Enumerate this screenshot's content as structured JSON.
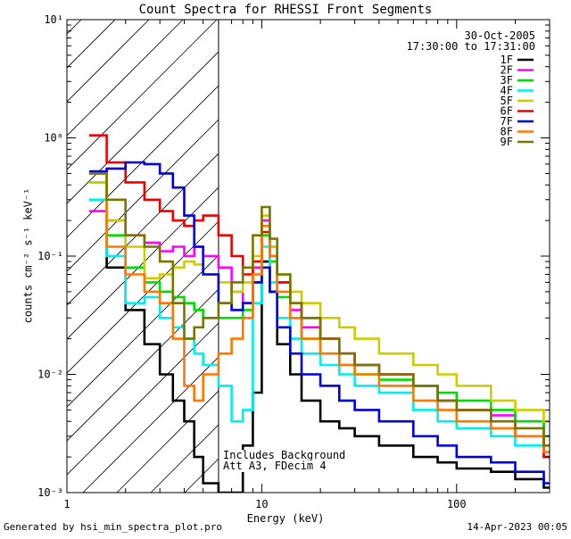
{
  "chart_data": {
    "type": "line",
    "title": "Count Spectra for RHESSI Front Segments",
    "xlabel": "Energy (keV)",
    "ylabel": "counts cm⁻² s⁻¹ keV⁻¹",
    "xscale": "log",
    "yscale": "log",
    "xlim": [
      1,
      300
    ],
    "ylim": [
      0.001,
      10
    ],
    "x_tick_labels": [
      "1",
      "10",
      "100"
    ],
    "y_tick_labels": [
      "10⁻³",
      "10⁻²",
      "10⁻¹",
      "10⁰",
      "10¹"
    ],
    "date": "30-Oct-2005",
    "time_range": "17:30:00 to 17:31:00",
    "shaded_region_keV": [
      1,
      6
    ],
    "annotations": [
      "Includes Background",
      "Att A3, FDecim 4"
    ],
    "footer_left": "Generated by hsi_min_spectra_plot.pro",
    "footer_right": "14-Apr-2023 00:05",
    "legend_position": "top-right",
    "series": [
      {
        "name": "1F",
        "color": "#000000",
        "points": [
          [
            1.3,
            0.3
          ],
          [
            1.6,
            0.08
          ],
          [
            2.0,
            0.035
          ],
          [
            2.5,
            0.018
          ],
          [
            3.0,
            0.01
          ],
          [
            3.5,
            0.006
          ],
          [
            4.0,
            0.004
          ],
          [
            4.5,
            0.002
          ],
          [
            5.0,
            0.0012
          ],
          [
            6.0,
            0.001
          ],
          [
            8.0,
            0.0025
          ],
          [
            9.0,
            0.007
          ],
          [
            10.0,
            0.09
          ],
          [
            11,
            0.05
          ],
          [
            12,
            0.018
          ],
          [
            14,
            0.01
          ],
          [
            16,
            0.006
          ],
          [
            20,
            0.004
          ],
          [
            25,
            0.0035
          ],
          [
            30,
            0.003
          ],
          [
            40,
            0.0025
          ],
          [
            60,
            0.002
          ],
          [
            80,
            0.0018
          ],
          [
            100,
            0.0016
          ],
          [
            150,
            0.0015
          ],
          [
            200,
            0.0013
          ],
          [
            280,
            0.0011
          ]
        ]
      },
      {
        "name": "2F",
        "color": "#ff00ff",
        "points": [
          [
            1.3,
            0.24
          ],
          [
            1.6,
            0.2
          ],
          [
            2.0,
            0.15
          ],
          [
            2.5,
            0.13
          ],
          [
            3.0,
            0.11
          ],
          [
            3.5,
            0.12
          ],
          [
            4.0,
            0.1
          ],
          [
            4.5,
            0.12
          ],
          [
            5.0,
            0.1
          ],
          [
            6.0,
            0.08
          ],
          [
            7.0,
            0.05
          ],
          [
            8.0,
            0.04
          ],
          [
            9.0,
            0.08
          ],
          [
            10.0,
            0.2
          ],
          [
            11,
            0.12
          ],
          [
            12,
            0.06
          ],
          [
            14,
            0.035
          ],
          [
            16,
            0.025
          ],
          [
            20,
            0.02
          ],
          [
            25,
            0.015
          ],
          [
            30,
            0.012
          ],
          [
            40,
            0.01
          ],
          [
            60,
            0.008
          ],
          [
            80,
            0.006
          ],
          [
            100,
            0.005
          ],
          [
            150,
            0.0045
          ],
          [
            200,
            0.004
          ],
          [
            280,
            0.002
          ]
        ]
      },
      {
        "name": "3F",
        "color": "#00dd00",
        "points": [
          [
            1.3,
            0.42
          ],
          [
            1.6,
            0.15
          ],
          [
            2.0,
            0.08
          ],
          [
            2.5,
            0.06
          ],
          [
            3.0,
            0.05
          ],
          [
            3.5,
            0.045
          ],
          [
            4.0,
            0.04
          ],
          [
            4.5,
            0.035
          ],
          [
            5.0,
            0.03
          ],
          [
            6.0,
            0.03
          ],
          [
            7.0,
            0.03
          ],
          [
            8.0,
            0.035
          ],
          [
            9.0,
            0.06
          ],
          [
            10.0,
            0.15
          ],
          [
            11,
            0.09
          ],
          [
            12,
            0.045
          ],
          [
            14,
            0.03
          ],
          [
            16,
            0.02
          ],
          [
            20,
            0.015
          ],
          [
            25,
            0.012
          ],
          [
            30,
            0.01
          ],
          [
            40,
            0.009
          ],
          [
            60,
            0.008
          ],
          [
            80,
            0.007
          ],
          [
            100,
            0.006
          ],
          [
            150,
            0.005
          ],
          [
            200,
            0.004
          ],
          [
            280,
            0.003
          ]
        ]
      },
      {
        "name": "4F",
        "color": "#00eeee",
        "points": [
          [
            1.3,
            0.3
          ],
          [
            1.6,
            0.1
          ],
          [
            2.0,
            0.04
          ],
          [
            2.5,
            0.045
          ],
          [
            3.0,
            0.03
          ],
          [
            3.5,
            0.025
          ],
          [
            4.0,
            0.02
          ],
          [
            4.5,
            0.015
          ],
          [
            5.0,
            0.012
          ],
          [
            6.0,
            0.008
          ],
          [
            7.0,
            0.004
          ],
          [
            8.0,
            0.005
          ],
          [
            9.0,
            0.04
          ],
          [
            10.0,
            0.12
          ],
          [
            11,
            0.06
          ],
          [
            12,
            0.03
          ],
          [
            14,
            0.02
          ],
          [
            16,
            0.015
          ],
          [
            20,
            0.012
          ],
          [
            25,
            0.01
          ],
          [
            30,
            0.008
          ],
          [
            40,
            0.007
          ],
          [
            60,
            0.005
          ],
          [
            80,
            0.004
          ],
          [
            100,
            0.0035
          ],
          [
            150,
            0.003
          ],
          [
            200,
            0.0025
          ],
          [
            280,
            0.002
          ]
        ]
      },
      {
        "name": "5F",
        "color": "#cccc00",
        "points": [
          [
            1.3,
            0.42
          ],
          [
            1.6,
            0.2
          ],
          [
            2.0,
            0.12
          ],
          [
            2.5,
            0.065
          ],
          [
            3.0,
            0.07
          ],
          [
            3.5,
            0.08
          ],
          [
            4.0,
            0.09
          ],
          [
            4.5,
            0.085
          ],
          [
            5.0,
            0.07
          ],
          [
            6.0,
            0.06
          ],
          [
            7.0,
            0.05
          ],
          [
            8.0,
            0.06
          ],
          [
            9.0,
            0.1
          ],
          [
            10.0,
            0.22
          ],
          [
            11,
            0.12
          ],
          [
            12,
            0.07
          ],
          [
            14,
            0.05
          ],
          [
            16,
            0.04
          ],
          [
            20,
            0.03
          ],
          [
            25,
            0.025
          ],
          [
            30,
            0.02
          ],
          [
            40,
            0.015
          ],
          [
            60,
            0.012
          ],
          [
            80,
            0.01
          ],
          [
            100,
            0.008
          ],
          [
            150,
            0.006
          ],
          [
            200,
            0.005
          ],
          [
            280,
            0.004
          ]
        ]
      },
      {
        "name": "6F",
        "color": "#ee0000",
        "points": [
          [
            1.3,
            1.05
          ],
          [
            1.6,
            0.62
          ],
          [
            2.0,
            0.42
          ],
          [
            2.5,
            0.3
          ],
          [
            3.0,
            0.24
          ],
          [
            3.5,
            0.2
          ],
          [
            4.0,
            0.18
          ],
          [
            4.5,
            0.2
          ],
          [
            5.0,
            0.22
          ],
          [
            6.0,
            0.15
          ],
          [
            7.0,
            0.1
          ],
          [
            8.0,
            0.07
          ],
          [
            9.0,
            0.09
          ],
          [
            10.0,
            0.16
          ],
          [
            11,
            0.1
          ],
          [
            12,
            0.06
          ],
          [
            14,
            0.04
          ],
          [
            16,
            0.03
          ],
          [
            20,
            0.02
          ],
          [
            25,
            0.015
          ],
          [
            30,
            0.012
          ],
          [
            40,
            0.01
          ],
          [
            60,
            0.008
          ],
          [
            80,
            0.006
          ],
          [
            100,
            0.005
          ],
          [
            150,
            0.004
          ],
          [
            200,
            0.003
          ],
          [
            280,
            0.002
          ]
        ]
      },
      {
        "name": "7F",
        "color": "#0000dd",
        "points": [
          [
            1.3,
            0.52
          ],
          [
            1.6,
            0.55
          ],
          [
            2.0,
            0.62
          ],
          [
            2.5,
            0.6
          ],
          [
            3.0,
            0.5
          ],
          [
            3.5,
            0.38
          ],
          [
            4.0,
            0.22
          ],
          [
            4.5,
            0.12
          ],
          [
            5.0,
            0.07
          ],
          [
            6.0,
            0.04
          ],
          [
            7.0,
            0.035
          ],
          [
            8.0,
            0.04
          ],
          [
            9.0,
            0.06
          ],
          [
            10.0,
            0.08
          ],
          [
            11,
            0.05
          ],
          [
            12,
            0.025
          ],
          [
            14,
            0.015
          ],
          [
            16,
            0.01
          ],
          [
            20,
            0.008
          ],
          [
            25,
            0.006
          ],
          [
            30,
            0.005
          ],
          [
            40,
            0.004
          ],
          [
            60,
            0.003
          ],
          [
            80,
            0.0025
          ],
          [
            100,
            0.002
          ],
          [
            150,
            0.0018
          ],
          [
            200,
            0.0015
          ],
          [
            280,
            0.0012
          ]
        ]
      },
      {
        "name": "8F",
        "color": "#ff7700",
        "points": [
          [
            1.3,
            0.5
          ],
          [
            1.6,
            0.12
          ],
          [
            2.0,
            0.07
          ],
          [
            2.5,
            0.05
          ],
          [
            3.0,
            0.04
          ],
          [
            3.5,
            0.02
          ],
          [
            4.0,
            0.008
          ],
          [
            4.5,
            0.006
          ],
          [
            5.0,
            0.01
          ],
          [
            6.0,
            0.015
          ],
          [
            7.0,
            0.02
          ],
          [
            8.0,
            0.03
          ],
          [
            9.0,
            0.07
          ],
          [
            10.0,
            0.18
          ],
          [
            11,
            0.1
          ],
          [
            12,
            0.05
          ],
          [
            14,
            0.03
          ],
          [
            16,
            0.02
          ],
          [
            20,
            0.015
          ],
          [
            25,
            0.012
          ],
          [
            30,
            0.01
          ],
          [
            40,
            0.008
          ],
          [
            60,
            0.006
          ],
          [
            80,
            0.005
          ],
          [
            100,
            0.004
          ],
          [
            150,
            0.0035
          ],
          [
            200,
            0.003
          ],
          [
            280,
            0.0022
          ]
        ]
      },
      {
        "name": "9F",
        "color": "#777700",
        "points": [
          [
            1.3,
            0.5
          ],
          [
            1.6,
            0.3
          ],
          [
            2.0,
            0.15
          ],
          [
            2.5,
            0.12
          ],
          [
            3.0,
            0.09
          ],
          [
            3.5,
            0.04
          ],
          [
            4.0,
            0.02
          ],
          [
            4.5,
            0.025
          ],
          [
            5.0,
            0.03
          ],
          [
            6.0,
            0.04
          ],
          [
            7.0,
            0.06
          ],
          [
            8.0,
            0.08
          ],
          [
            9.0,
            0.15
          ],
          [
            10.0,
            0.26
          ],
          [
            11,
            0.14
          ],
          [
            12,
            0.07
          ],
          [
            14,
            0.04
          ],
          [
            16,
            0.03
          ],
          [
            20,
            0.02
          ],
          [
            25,
            0.015
          ],
          [
            30,
            0.012
          ],
          [
            40,
            0.01
          ],
          [
            60,
            0.008
          ],
          [
            80,
            0.006
          ],
          [
            100,
            0.005
          ],
          [
            150,
            0.004
          ],
          [
            200,
            0.0035
          ],
          [
            280,
            0.0025
          ]
        ]
      }
    ]
  }
}
